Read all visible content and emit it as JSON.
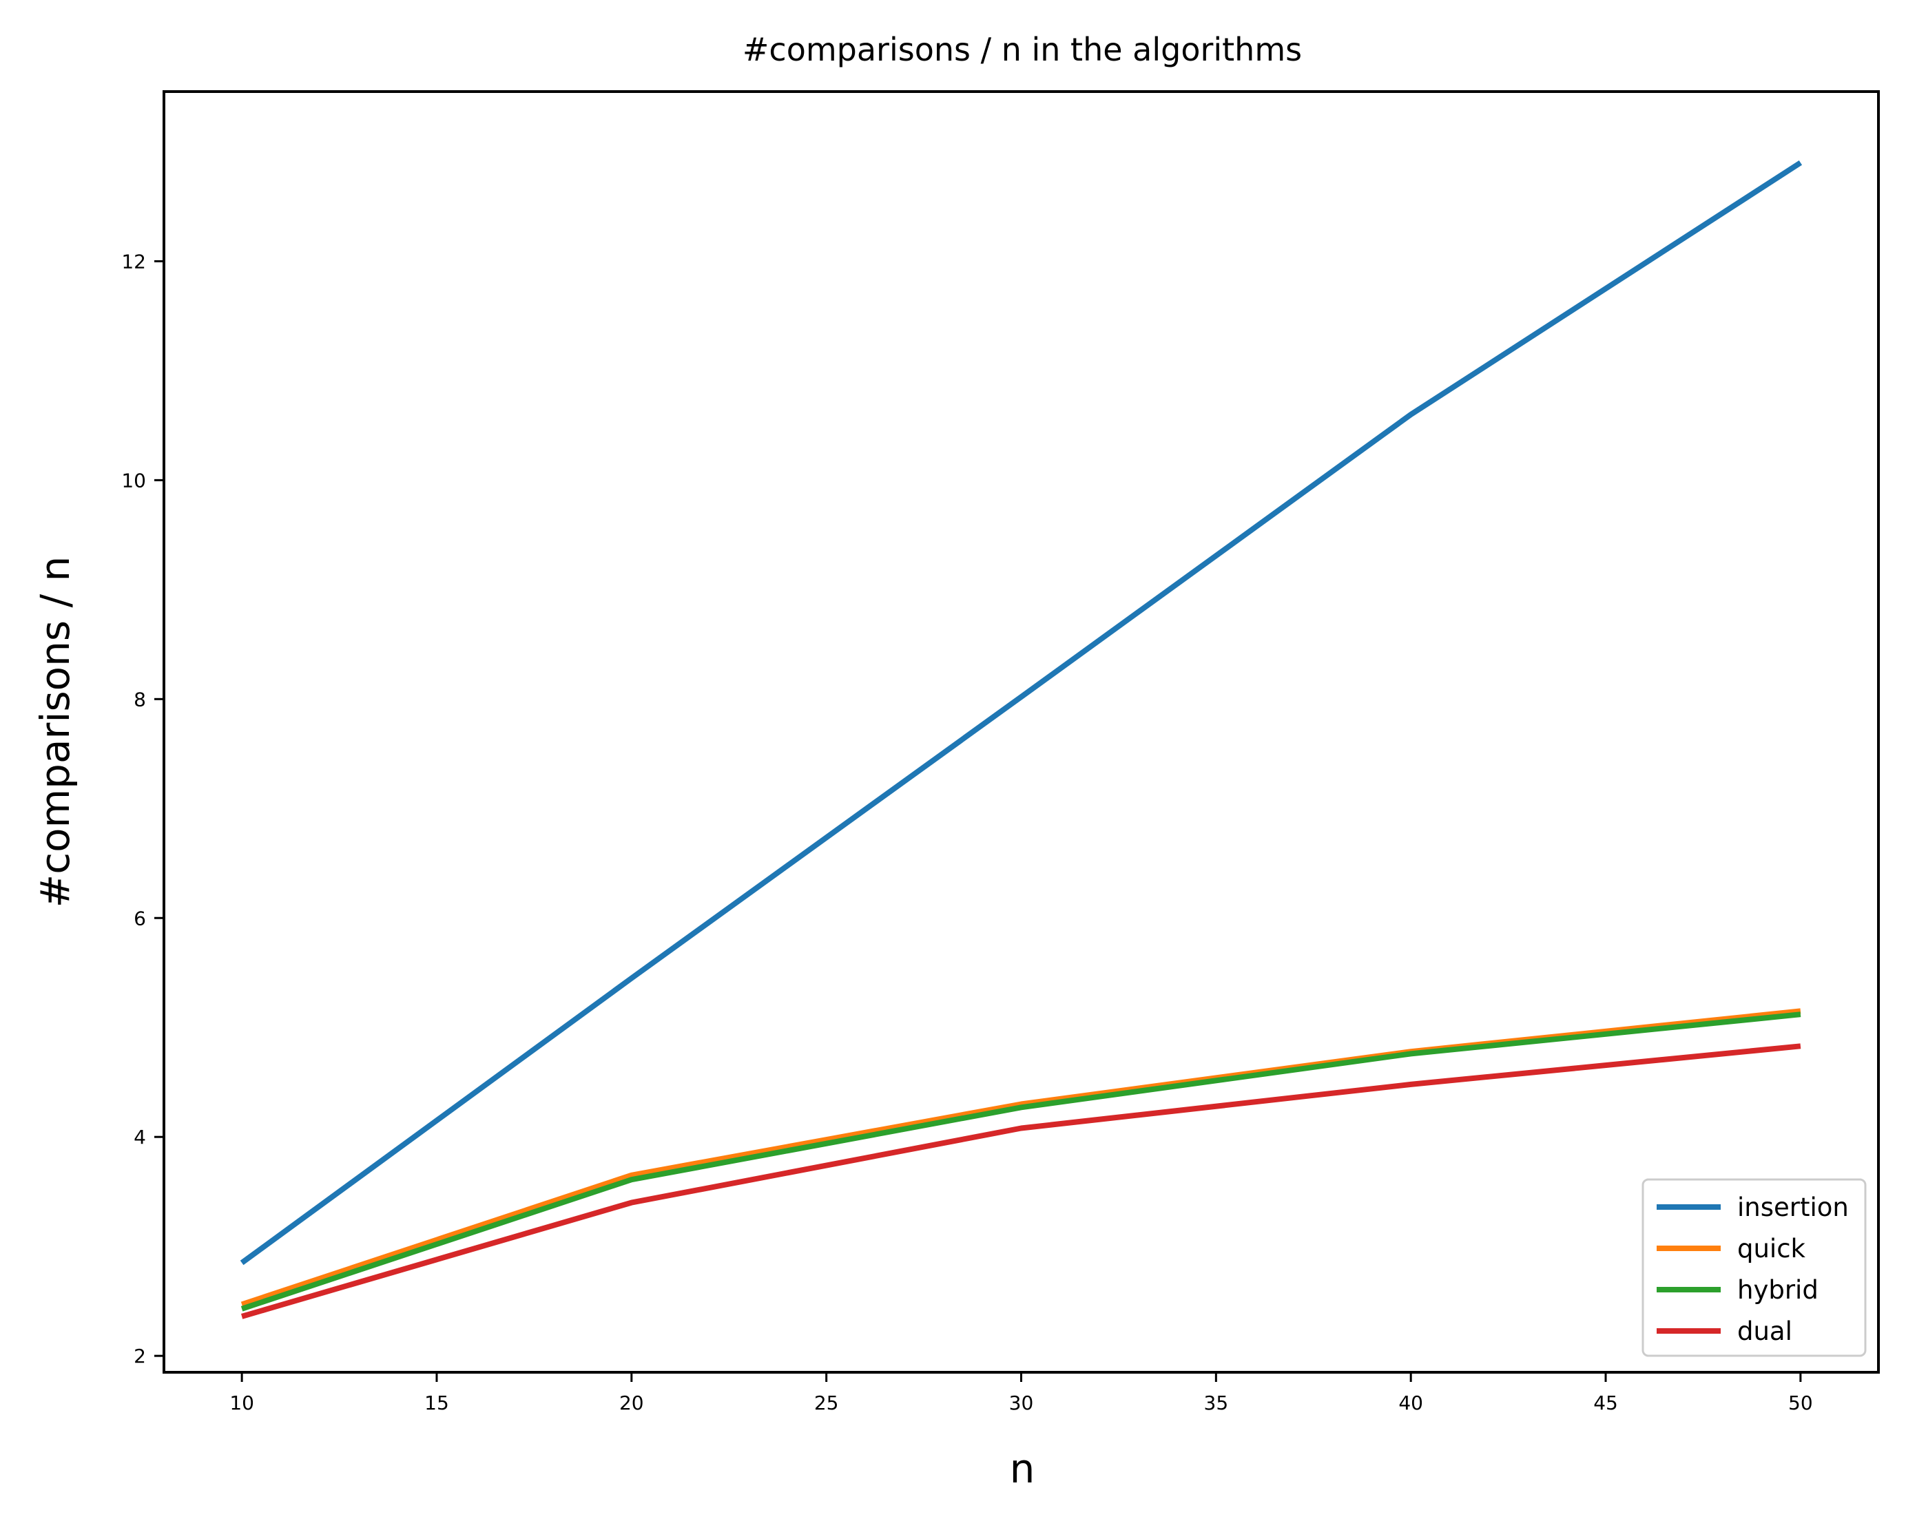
{
  "chart_data": {
    "type": "line",
    "title": "#comparisons / n in the algorithms",
    "xlabel": "n",
    "ylabel": "#comparisons / n",
    "x": [
      10,
      20,
      30,
      40,
      50
    ],
    "xlim": [
      8,
      52
    ],
    "ylim": [
      1.85,
      13.55
    ],
    "xticks": [
      10,
      15,
      20,
      25,
      30,
      35,
      40,
      45,
      50
    ],
    "yticks": [
      2,
      4,
      6,
      8,
      10,
      12
    ],
    "grid": false,
    "legend_position": "lower-right",
    "series": [
      {
        "name": "insertion",
        "color": "#1f77b4",
        "values": [
          2.85,
          5.45,
          8.02,
          10.6,
          12.9
        ]
      },
      {
        "name": "quick",
        "color": "#ff7f0e",
        "values": [
          2.47,
          3.65,
          4.3,
          4.78,
          5.15
        ]
      },
      {
        "name": "hybrid",
        "color": "#2ca02c",
        "values": [
          2.43,
          3.61,
          4.27,
          4.76,
          5.12
        ]
      },
      {
        "name": "dual",
        "color": "#d62728",
        "values": [
          2.36,
          3.4,
          4.08,
          4.48,
          4.83
        ]
      }
    ]
  }
}
